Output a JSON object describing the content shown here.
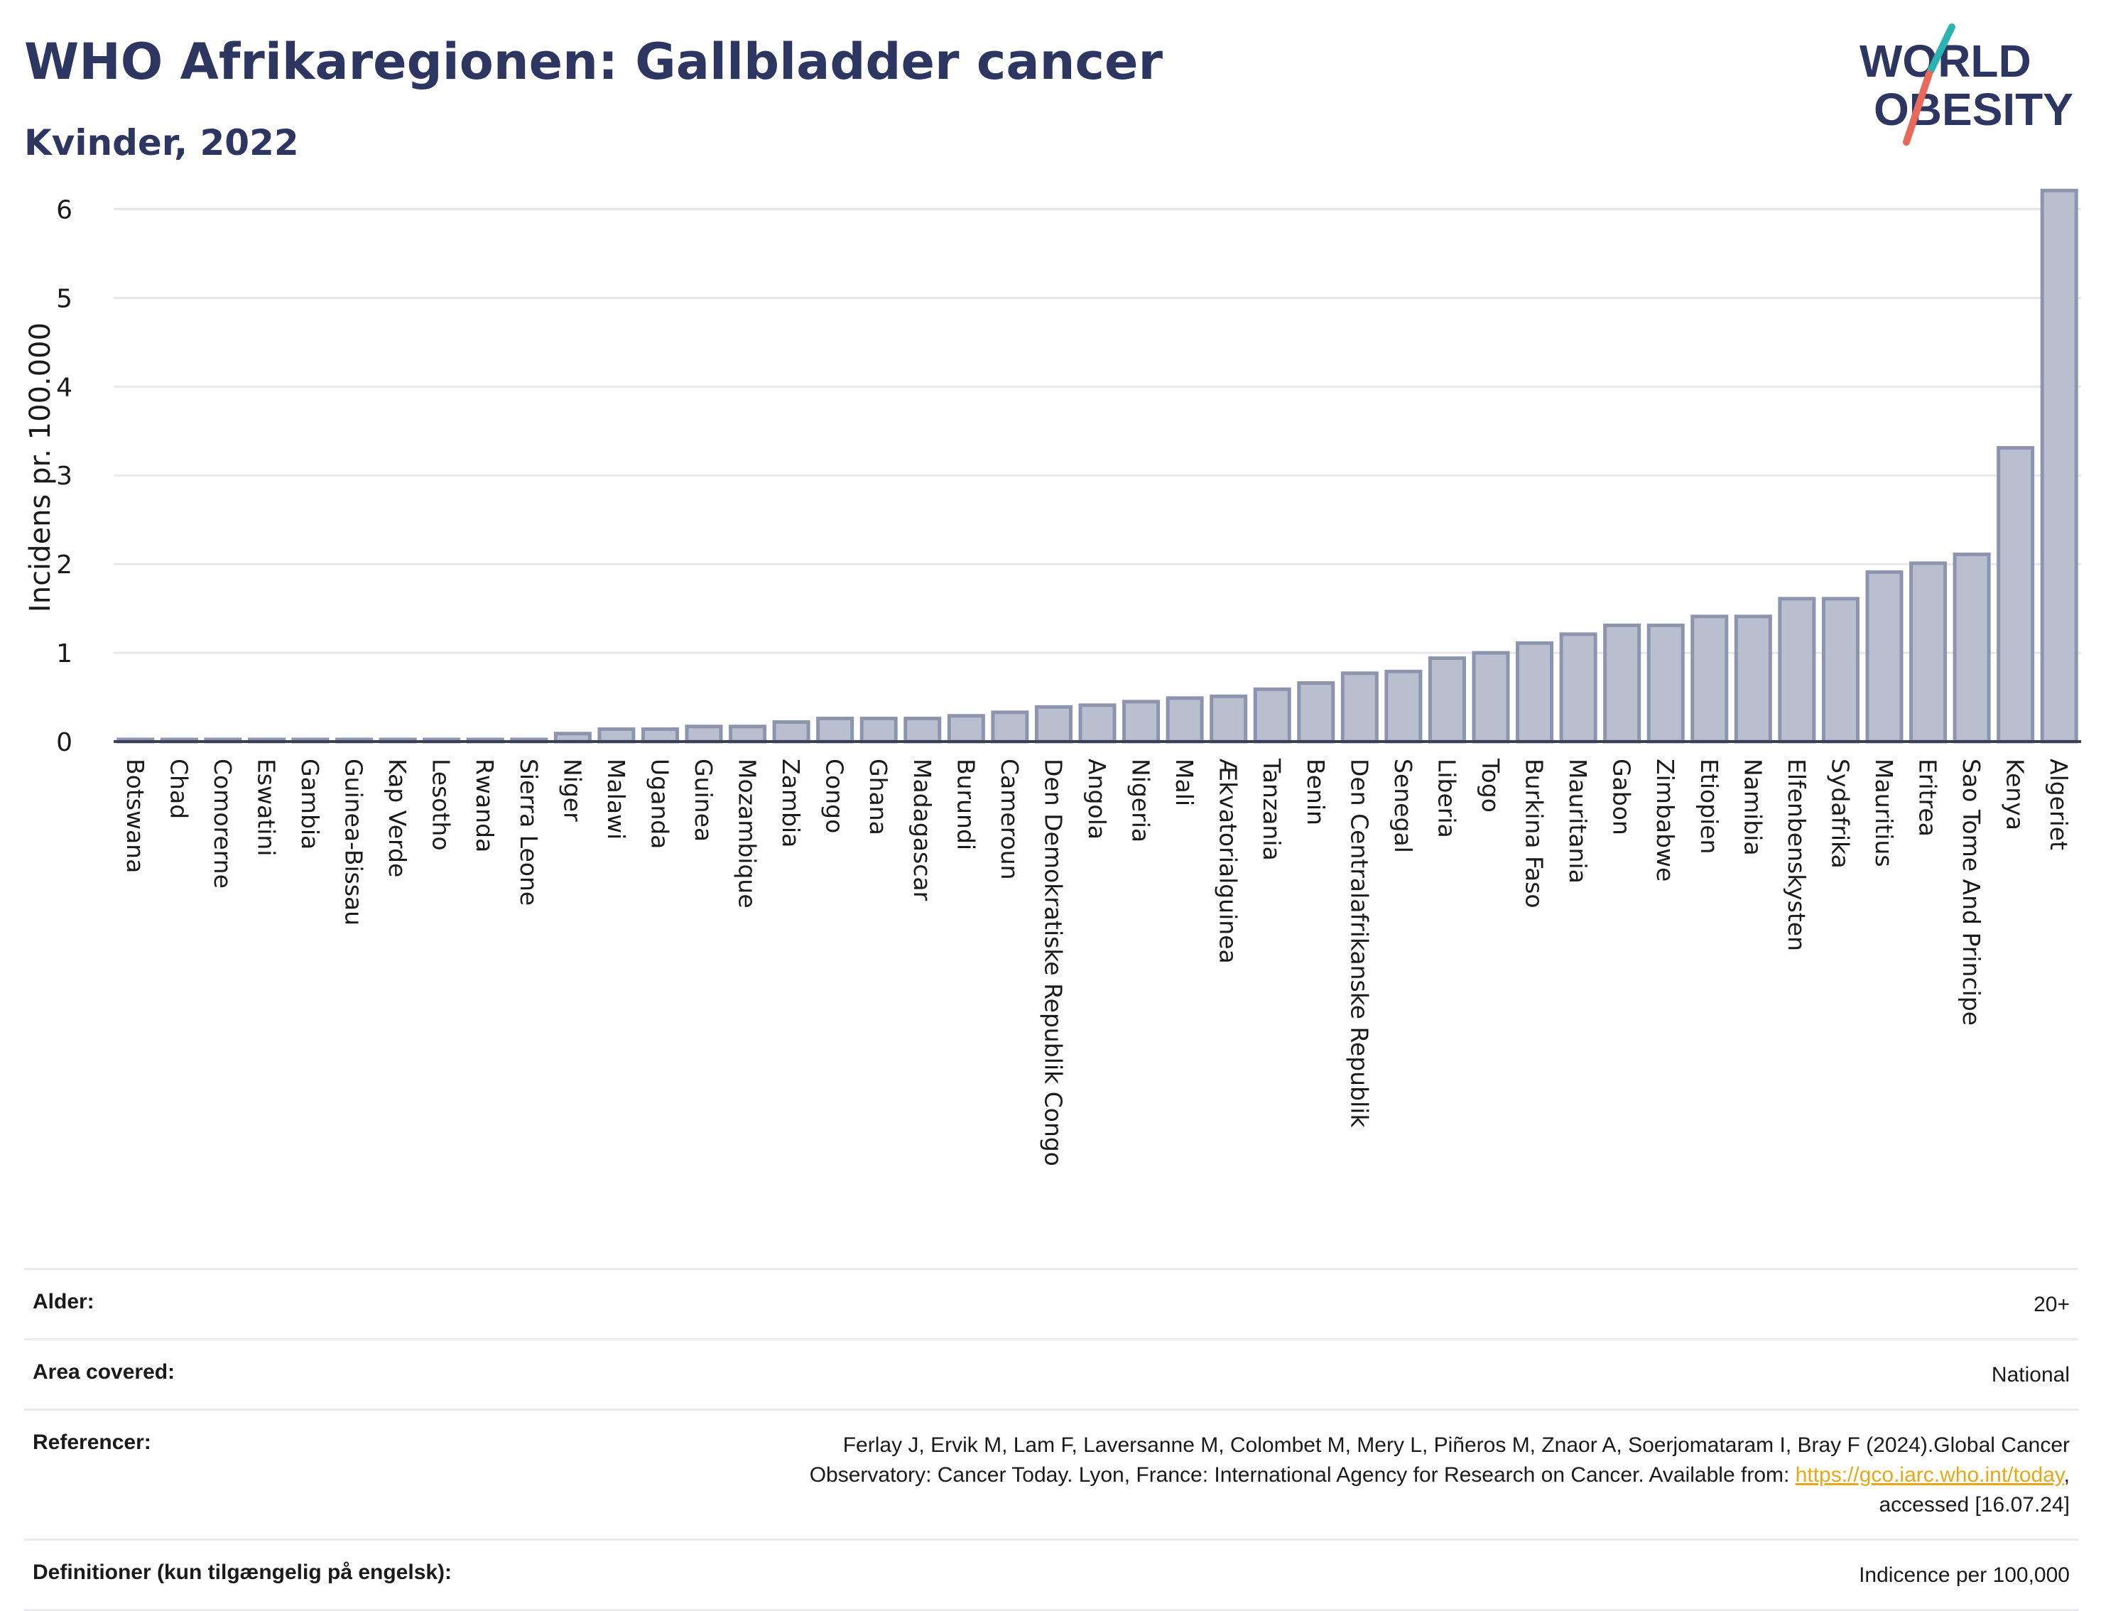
{
  "header": {
    "title": "WHO Afrikaregionen: Gallbladder cancer",
    "subtitle": "Kvinder, 2022"
  },
  "logo": {
    "line1": "WORLD",
    "line2": "OBESITY",
    "colors": {
      "text": "#2d3561",
      "slash_top": "#2ab3b1",
      "slash_bottom": "#e8685a"
    }
  },
  "chart_data": {
    "type": "bar",
    "title": "",
    "xlabel": "",
    "ylabel": "Incidens pr. 100.000",
    "ylim": [
      0,
      6.5
    ],
    "yticks": [
      0,
      1,
      2,
      3,
      4,
      5,
      6
    ],
    "grid": true,
    "bar_color": "#b9bfce",
    "bar_edge_color": "#8d94ad",
    "categories": [
      "Botswana",
      "Chad",
      "Comorerne",
      "Eswatini",
      "Gambia",
      "Guinea-Bissau",
      "Kap Verde",
      "Lesotho",
      "Rwanda",
      "Sierra Leone",
      "Niger",
      "Malawi",
      "Uganda",
      "Guinea",
      "Mozambique",
      "Zambia",
      "Congo",
      "Ghana",
      "Madagascar",
      "Burundi",
      "Cameroun",
      "Den Demokratiske Republik Congo",
      "Angola",
      "Nigeria",
      "Mali",
      "Ækvatorialguinea",
      "Tanzania",
      "Benin",
      "Den Centralafrikanske Republik",
      "Senegal",
      "Liberia",
      "Togo",
      "Burkina Faso",
      "Mauritania",
      "Gabon",
      "Zimbabwe",
      "Etiopien",
      "Namibia",
      "Elfenbenskysten",
      "Sydafrika",
      "Mauritius",
      "Eritrea",
      "Sao Tome And Principe",
      "Kenya",
      "Algeriet"
    ],
    "values": [
      0.02,
      0.02,
      0.02,
      0.02,
      0.02,
      0.02,
      0.02,
      0.02,
      0.02,
      0.02,
      0.09,
      0.14,
      0.14,
      0.17,
      0.17,
      0.22,
      0.26,
      0.26,
      0.26,
      0.29,
      0.33,
      0.39,
      0.41,
      0.45,
      0.49,
      0.51,
      0.59,
      0.66,
      0.77,
      0.79,
      0.94,
      1.0,
      1.11,
      1.21,
      1.31,
      1.31,
      1.41,
      1.41,
      1.61,
      1.61,
      1.91,
      2.01,
      2.11,
      3.31,
      6.21
    ]
  },
  "meta": {
    "age_label": "Alder:",
    "age_value": "20+",
    "area_label": "Area covered:",
    "area_value": "National",
    "ref_label": "Referencer:",
    "ref_text_1": "Ferlay J, Ervik M, Lam F, Laversanne M, Colombet M, Mery L, Piñeros M, Znaor A, Soerjomataram I, Bray F (2024).Global Cancer",
    "ref_text_2": "Observatory: Cancer Today. Lyon, France: International Agency for Research on Cancer. Available from: ",
    "ref_link": "https://gco.iarc.who.int/today",
    "ref_text_3": ",",
    "ref_text_4": "accessed [16.07.24]",
    "def_label": "Definitioner (kun tilgængelig på engelsk):",
    "def_value": "Indicence per 100,000"
  }
}
